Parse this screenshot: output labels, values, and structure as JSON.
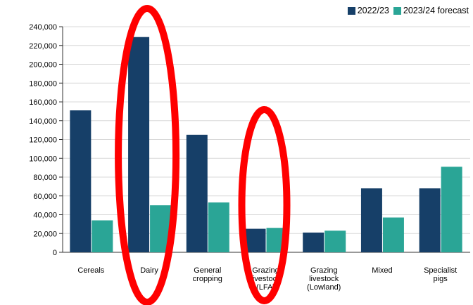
{
  "chart_data": {
    "type": "bar",
    "categories": [
      [
        "Cereals"
      ],
      [
        "Dairy"
      ],
      [
        "General",
        "cropping"
      ],
      [
        "Grazing",
        "livestock",
        "(LFA)"
      ],
      [
        "Grazing",
        "livestock",
        "(Lowland)"
      ],
      [
        "Mixed"
      ],
      [
        "Specialist",
        "pigs"
      ]
    ],
    "series": [
      {
        "name": "2022/23",
        "color": "#163f68",
        "values": [
          151000,
          229000,
          125000,
          25000,
          21000,
          68000,
          68000
        ]
      },
      {
        "name": "2023/24 forecast",
        "color": "#2aa596",
        "values": [
          34000,
          50000,
          53000,
          26000,
          23000,
          37000,
          91000
        ]
      }
    ],
    "yticks": [
      "0",
      "20,000",
      "40,000",
      "60,000",
      "80,000",
      "100,000",
      "120,000",
      "140,000",
      "160,000",
      "180,000",
      "200,000",
      "220,000",
      "240,000"
    ],
    "ylim": [
      0,
      240000
    ],
    "grid": true,
    "legend": "top-right",
    "annotations": [
      {
        "shape": "ellipse",
        "color": "#ff0000",
        "around": "Dairy"
      },
      {
        "shape": "ellipse",
        "color": "#ff0000",
        "around": "Grazing livestock (LFA)"
      }
    ]
  }
}
